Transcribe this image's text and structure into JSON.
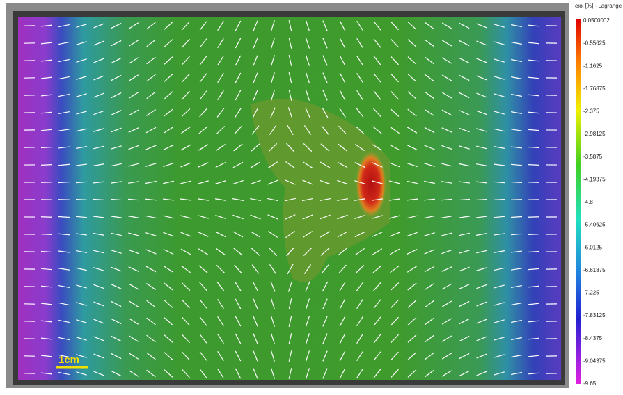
{
  "colorbar": {
    "title": "exx [%] - Lagrange",
    "ticks": [
      "0.0500002",
      "-0.55625",
      "-1.1625",
      "-1.76875",
      "-2.375",
      "-2.98125",
      "-3.5875",
      "-4.19375",
      "-4.8",
      "-5.40625",
      "-6.0125",
      "-6.61875",
      "-7.225",
      "-7.83125",
      "-8.4375",
      "-9.04375",
      "-9.65"
    ]
  },
  "scale_bar": {
    "label": "1cm"
  }
}
